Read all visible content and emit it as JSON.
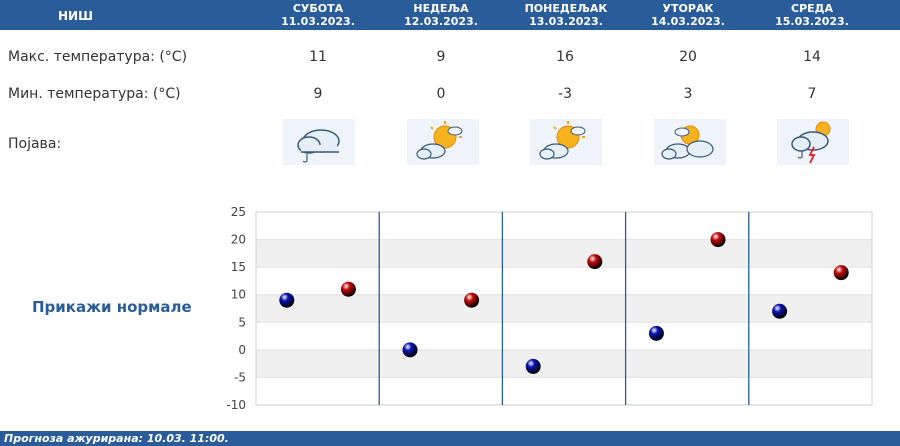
{
  "header": {
    "city": "НИШ",
    "days": [
      {
        "name": "СУБОТА",
        "date": "11.03.2023."
      },
      {
        "name": "НЕДЕЉА",
        "date": "12.03.2023."
      },
      {
        "name": "ПОНЕДЕЉАК",
        "date": "13.03.2023."
      },
      {
        "name": "УТОРАК",
        "date": "14.03.2023."
      },
      {
        "name": "СРЕДА",
        "date": "15.03.2023."
      }
    ]
  },
  "rows": {
    "max_label": "Макс. температура: (°C)",
    "min_label": "Мин. температура: (°C)",
    "phenomenon_label": "Појава:",
    "max": [
      "11",
      "9",
      "16",
      "20",
      "14"
    ],
    "min": [
      "9",
      "0",
      "-3",
      "3",
      "7"
    ],
    "icons": [
      "cloud-rain-icon",
      "sun-cloud-icon",
      "sun-cloud-icon",
      "sun-clouds-icon",
      "cloud-thunder-icon"
    ]
  },
  "normals_link": "Прикажи нормале",
  "chart_data": {
    "type": "scatter",
    "categories": [
      "11.03.2023.",
      "12.03.2023.",
      "13.03.2023.",
      "14.03.2023.",
      "15.03.2023."
    ],
    "series": [
      {
        "values": [
          9,
          0,
          -3,
          3,
          7
        ],
        "color": "#0a14b4"
      },
      {
        "values": [
          11,
          9,
          16,
          20,
          14
        ],
        "color": "#c80a0a"
      }
    ],
    "ylim": [
      -10,
      25
    ],
    "yticks": [
      "25",
      "20",
      "15",
      "10",
      "5",
      "0",
      "-5",
      "-10"
    ],
    "grid": true
  },
  "footer": "Прогноза ажурирана:  10.03. 11:00."
}
